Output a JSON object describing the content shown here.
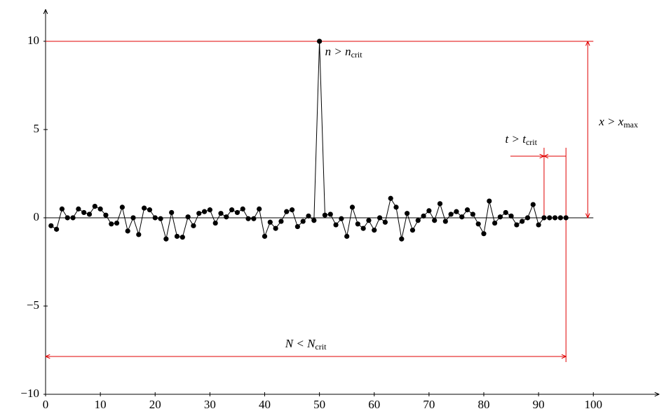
{
  "chart_data": {
    "type": "line",
    "series": [
      {
        "color": "#000000",
        "x": [
          1,
          2,
          3,
          4,
          5,
          6,
          7,
          8,
          9,
          10,
          11,
          12,
          13,
          14,
          15,
          16,
          17,
          18,
          19,
          20,
          21,
          22,
          23,
          24,
          25,
          26,
          27,
          28,
          29,
          30,
          31,
          32,
          33,
          34,
          35,
          36,
          37,
          38,
          39,
          40,
          41,
          42,
          43,
          44,
          45,
          46,
          47,
          48,
          49,
          50,
          51,
          52,
          53,
          54,
          55,
          56,
          57,
          58,
          59,
          60,
          61,
          62,
          63,
          64,
          65,
          66,
          67,
          68,
          69,
          70,
          71,
          72,
          73,
          74,
          75,
          76,
          77,
          78,
          79,
          80,
          81,
          82,
          83,
          84,
          85,
          86,
          87,
          88,
          89,
          90,
          91,
          92,
          93,
          94,
          95
        ],
        "values": [
          -0.45,
          -0.65,
          0.5,
          0,
          0,
          0.5,
          0.3,
          0.2,
          0.65,
          0.5,
          0.15,
          -0.35,
          -0.3,
          0.6,
          -0.75,
          0,
          -0.95,
          0.55,
          0.45,
          0,
          -0.05,
          -1.2,
          0.3,
          -1.05,
          -1.1,
          0.05,
          -0.45,
          0.25,
          0.35,
          0.45,
          -0.3,
          0.25,
          0.05,
          0.45,
          0.3,
          0.5,
          -0.05,
          -0.05,
          0.5,
          -1.05,
          -0.25,
          -0.6,
          -0.2,
          0.35,
          0.45,
          -0.5,
          -0.2,
          0.1,
          -0.15,
          10,
          0.15,
          0.2,
          -0.4,
          -0.05,
          -1.05,
          0.6,
          -0.35,
          -0.6,
          -0.15,
          -0.7,
          0,
          -0.25,
          1.1,
          0.6,
          -1.2,
          0.25,
          -0.7,
          -0.15,
          0.1,
          0.4,
          -0.15,
          0.8,
          -0.2,
          0.2,
          0.35,
          0.05,
          0.45,
          0.2,
          -0.35,
          -0.9,
          0.95,
          -0.3,
          0.05,
          0.3,
          0.1,
          -0.4,
          -0.2,
          0,
          0.75,
          -0.4,
          0,
          0,
          0,
          0,
          0
        ]
      }
    ],
    "xlim": [
      0,
      112
    ],
    "ylim": [
      -10,
      11.8
    ],
    "xticks": [
      0,
      10,
      20,
      30,
      40,
      50,
      60,
      70,
      80,
      90,
      100
    ],
    "yticks": [
      {
        "value": -10,
        "label": "−10"
      },
      {
        "value": -5,
        "label": "−5"
      },
      0,
      5,
      10
    ],
    "annotation_color": "#e00000",
    "annotations": [
      {
        "text": "n > n",
        "sub": "crit"
      },
      {
        "text": "x > x",
        "sub": "max"
      },
      {
        "text": "t > t",
        "sub": "crit"
      },
      {
        "text": "N < N",
        "sub": "crit"
      }
    ]
  }
}
